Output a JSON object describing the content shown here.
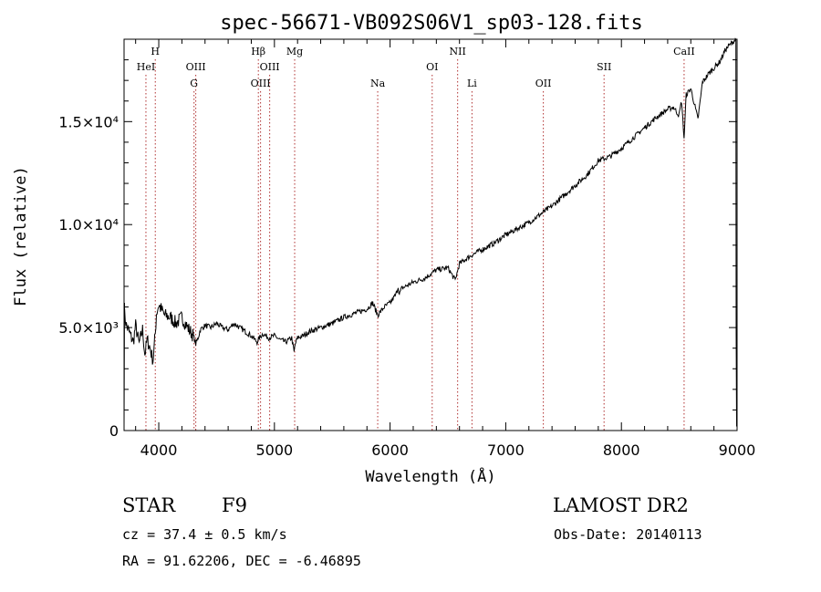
{
  "chart_data": {
    "type": "line",
    "title": "spec-56671-VB092S06V1_sp03-128.fits",
    "xlabel": "Wavelength (Å)",
    "ylabel": "Flux (relative)",
    "xlim": [
      3700,
      9000
    ],
    "ylim": [
      0,
      19000
    ],
    "x_ticks": [
      4000,
      5000,
      6000,
      7000,
      8000,
      9000
    ],
    "x_tick_labels": [
      "4000",
      "5000",
      "6000",
      "7000",
      "8000",
      "9000"
    ],
    "y_ticks": [
      0,
      5000,
      10000,
      15000
    ],
    "y_tick_labels": [
      "0",
      "5.0×10³",
      "1.0×10⁴",
      "1.5×10⁴"
    ],
    "series": [
      {
        "x": [
          3700,
          3720,
          3750,
          3780,
          3800,
          3830,
          3860,
          3880,
          3900,
          3920,
          3950,
          3970,
          3980,
          4000,
          4050,
          4100,
          4150,
          4200,
          4250,
          4300,
          4320,
          4340,
          4360,
          4400,
          4450,
          4500,
          4550,
          4600,
          4650,
          4700,
          4750,
          4800,
          4850,
          4861,
          4870,
          4900,
          4950,
          5000,
          5050,
          5100,
          5150,
          5170,
          5180,
          5200,
          5250,
          5300,
          5400,
          5500,
          5600,
          5700,
          5800,
          5850,
          5893,
          5950,
          6000,
          6050,
          6070,
          6080,
          6100,
          6200,
          6300,
          6400,
          6500,
          6563,
          6600,
          6700,
          6800,
          6900,
          7000,
          7100,
          7200,
          7300,
          7400,
          7500,
          7600,
          7700,
          7800,
          7900,
          8000,
          8100,
          8200,
          8300,
          8400,
          8450,
          8498,
          8520,
          8542,
          8560,
          8600,
          8662,
          8700,
          8750,
          8800,
          8850,
          8900,
          8950,
          8990
        ],
        "y": [
          5800,
          5100,
          4700,
          4300,
          5100,
          4200,
          4900,
          3700,
          4400,
          4100,
          3400,
          4700,
          5700,
          6100,
          5600,
          5500,
          5200,
          5500,
          5000,
          4600,
          4200,
          4500,
          4900,
          5100,
          5000,
          5200,
          5000,
          4900,
          5200,
          5000,
          4800,
          4600,
          4300,
          4400,
          4500,
          4700,
          4500,
          4600,
          4400,
          4300,
          4500,
          3800,
          4200,
          4500,
          4600,
          4800,
          5000,
          5200,
          5500,
          5700,
          5900,
          6200,
          5600,
          6000,
          6200,
          6600,
          7000,
          6600,
          6900,
          7200,
          7400,
          7800,
          7900,
          7300,
          8100,
          8500,
          8800,
          9100,
          9500,
          9800,
          10100,
          10500,
          10900,
          11400,
          11900,
          12400,
          13100,
          13300,
          13700,
          14200,
          14700,
          15200,
          15600,
          15700,
          15300,
          16000,
          14200,
          16300,
          16600,
          15100,
          16900,
          17300,
          17600,
          17900,
          18500,
          18800,
          19000
        ]
      }
    ],
    "lines": [
      {
        "label": "HeI",
        "x": 3889,
        "row": 2
      },
      {
        "label": "H",
        "x": 3970,
        "row": 1
      },
      {
        "label": "OIII",
        "x": 4320,
        "row": 2
      },
      {
        "label": "G",
        "x": 4305,
        "row": 3
      },
      {
        "label": "Hβ",
        "x": 4861,
        "row": 1
      },
      {
        "label": "OIII",
        "x": 4959,
        "row": 2
      },
      {
        "label": "OIII",
        "x": 4880,
        "row": 3
      },
      {
        "label": "Mg",
        "x": 5175,
        "row": 1
      },
      {
        "label": "Na",
        "x": 5893,
        "row": 3
      },
      {
        "label": "OI",
        "x": 6364,
        "row": 2
      },
      {
        "label": "NII",
        "x": 6584,
        "row": 1
      },
      {
        "label": "Li",
        "x": 6708,
        "row": 3
      },
      {
        "label": "OII",
        "x": 7325,
        "row": 3
      },
      {
        "label": "SII",
        "x": 7850,
        "row": 2
      },
      {
        "label": "CaII",
        "x": 8542,
        "row": 1
      }
    ]
  },
  "info": {
    "object_type": "STAR",
    "subclass": "F9",
    "survey": "LAMOST DR2",
    "redshift": "cz = 37.4 ± 0.5 km/s",
    "obs_date": "Obs-Date: 20140113",
    "coords": "RA =  91.62206, DEC =  -6.46895"
  },
  "colors": {
    "line_marker": "#b03030",
    "spectrum": "#000000"
  }
}
